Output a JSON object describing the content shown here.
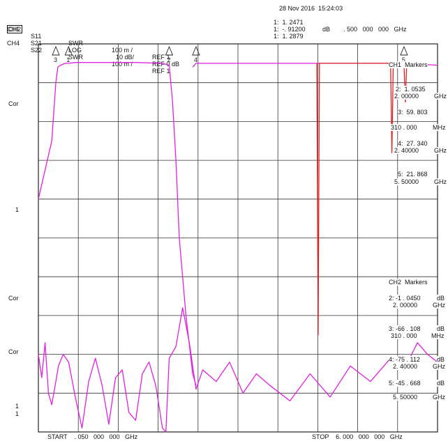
{
  "header": {
    "datetime": "28 Nov 2016  15:24:03",
    "channels": [
      {
        "ch": "CH1",
        "param": "S11",
        "format": "SWR",
        "scale": "100 m /",
        "ref": "REF 1",
        "boxed": false
      },
      {
        "ch": "CH2",
        "param": "S21",
        "format": "LOG",
        "scale": "10 dB/",
        "ref": "REF 0 dB",
        "boxed": true
      },
      {
        "ch": "CH4",
        "param": "S22",
        "format": "SWR",
        "scale": "100 m /",
        "ref": "REF 1",
        "boxed": false
      }
    ],
    "active_marker": {
      "line1": "1:  1. 2471",
      "line2": "1:  -. 91200",
      "line2_unit": "dB",
      "line2_freq": ". 500   000   000   GHz",
      "line3": "1:  1. 2879"
    }
  },
  "side_labels": [
    "Cor",
    "1",
    "Cor",
    "Cor",
    "1",
    "1"
  ],
  "ch1_markers": {
    "title": "CH1  Markers",
    "entries": [
      {
        "value": "2:  1. 0535",
        "freq": "2. 00000",
        "unit": "GHz"
      },
      {
        "value": "3:  59. 803",
        "freq": "310 . 000",
        "unit": "MHz"
      },
      {
        "value": "4:  27. 340",
        "freq": "2. 40000",
        "unit": "GHz"
      },
      {
        "value": "5:  21. 868",
        "freq": "5. 50000",
        "unit": "GHz"
      }
    ]
  },
  "ch2_markers": {
    "title": "CH2  Markers",
    "entries": [
      {
        "value": "2: -1 . 0450",
        "vunit": "dB",
        "freq": "2. 00000",
        "unit": "GHz"
      },
      {
        "value": "3: -66 . 108",
        "vunit": "dB",
        "freq": "310 . 000",
        "unit": "MHz"
      },
      {
        "value": "4: -75 . 112",
        "vunit": "dB",
        "freq": "2. 40000",
        "unit": "GHz"
      },
      {
        "value": "5: -45 . 668",
        "vunit": "dB",
        "freq": "5. 50000",
        "unit": "GHz"
      }
    ]
  },
  "footer": {
    "start": "START    . 050   000   000   GHz",
    "stop": "STOP    6. 000   000   000   GHz"
  },
  "chart_data": {
    "type": "line",
    "x_unit": "GHz",
    "xlim": [
      0.05,
      6.0
    ],
    "grid": true,
    "grid_divisions": {
      "x": 10,
      "y": 10
    },
    "series": [
      {
        "color": "#e020e0",
        "x": [
          0.05,
          0.25,
          0.31,
          0.34,
          0.38,
          0.45,
          0.5,
          0.6,
          1.0,
          1.5,
          1.9,
          2.0,
          2.05,
          2.1,
          2.15,
          2.25,
          2.35,
          2.4
        ],
        "y_div": [
          6.0,
          7.5,
          9.0,
          9.4,
          9.45,
          9.5,
          9.5,
          9.52,
          9.52,
          9.52,
          9.5,
          9.45,
          8.5,
          7.0,
          5.0,
          3.0,
          1.5,
          1.2
        ]
      },
      {
        "color": "#e020e0",
        "x": [
          0.05,
          0.1,
          0.15,
          0.2,
          0.25,
          0.31,
          0.35,
          0.42,
          0.5,
          0.6,
          0.7,
          0.8,
          0.9,
          1.0,
          1.1,
          1.2,
          1.3,
          1.4,
          1.5,
          1.6,
          1.7,
          1.8,
          1.9,
          1.95,
          2.0,
          2.1,
          2.2,
          2.3,
          2.4,
          2.5,
          2.7,
          2.9,
          3.1,
          3.3,
          3.5,
          3.8,
          4.1,
          4.4,
          4.7,
          5.0,
          5.3,
          5.5,
          5.7,
          5.85,
          6.0
        ],
        "y_div": [
          2.0,
          1.4,
          2.3,
          1.0,
          0.7,
          1.3,
          1.7,
          2.0,
          1.8,
          0.9,
          0.1,
          1.3,
          1.9,
          1.2,
          0.2,
          1.4,
          1.6,
          0.5,
          0.3,
          1.5,
          1.8,
          1.2,
          0.1,
          0.0,
          1.9,
          2.2,
          3.2,
          2.3,
          1.1,
          1.6,
          1.3,
          1.8,
          1.0,
          1.5,
          1.2,
          0.8,
          1.5,
          0.9,
          1.7,
          1.3,
          1.9,
          1.6,
          2.3,
          2.0,
          1.8
        ]
      },
      {
        "color": "#e020e0",
        "x": [
          2.35,
          2.4,
          2.8,
          3.5,
          4.0,
          4.5,
          5.0,
          5.5,
          6.0
        ],
        "y_div": [
          9.4,
          9.5,
          9.5,
          9.5,
          9.5,
          9.5,
          9.5,
          9.5,
          9.45
        ]
      },
      {
        "color": "#e02020",
        "x": [
          4.2,
          4.22,
          4.24,
          5.3,
          5.32,
          5.34,
          5.5,
          5.52,
          5.54
        ],
        "y_div": [
          9.5,
          2.5,
          9.5,
          9.5,
          7.2,
          9.5,
          9.5,
          8.5,
          9.5
        ]
      }
    ],
    "markers": [
      {
        "label": "1",
        "x": 0.5
      },
      {
        "label": "2",
        "x": 2.0
      },
      {
        "label": "3",
        "x": 0.31
      },
      {
        "label": "4",
        "x": 2.4
      },
      {
        "label": "5",
        "x": 5.5
      }
    ]
  }
}
